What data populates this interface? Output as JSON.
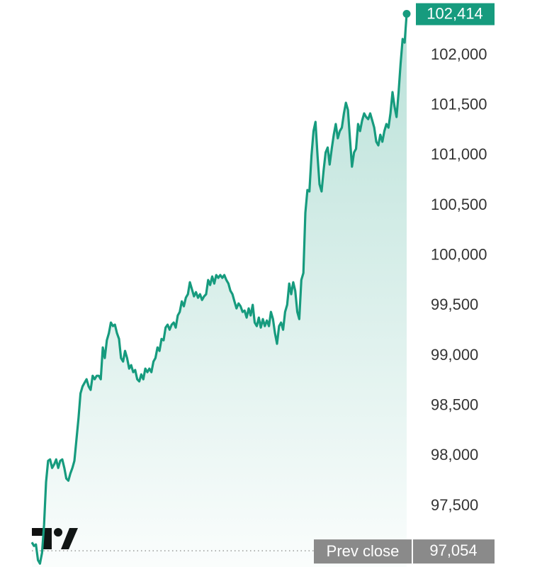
{
  "chart_data": {
    "type": "line",
    "color": "#169b7e",
    "values": [
      97138,
      97103,
      97117,
      96961,
      96926,
      97032,
      97315,
      97740,
      97952,
      97966,
      97881,
      97917,
      97966,
      97881,
      97952,
      97966,
      97881,
      97775,
      97754,
      97825,
      97881,
      97952,
      98164,
      98377,
      98624,
      98695,
      98730,
      98766,
      98695,
      98660,
      98801,
      98766,
      98801,
      98801,
      98766,
      99084,
      98978,
      99155,
      99226,
      99332,
      99297,
      99311,
      99226,
      99169,
      98978,
      98943,
      99049,
      98978,
      98872,
      98907,
      98837,
      98858,
      98766,
      98745,
      98815,
      98766,
      98872,
      98837,
      98872,
      98837,
      98943,
      98978,
      99084,
      99049,
      99169,
      99155,
      99282,
      99311,
      99261,
      99311,
      99332,
      99282,
      99403,
      99438,
      99544,
      99495,
      99580,
      99615,
      99735,
      99665,
      99594,
      99636,
      99580,
      99615,
      99558,
      99594,
      99615,
      99757,
      99707,
      99792,
      99721,
      99806,
      99778,
      99806,
      99778,
      99806,
      99757,
      99721,
      99650,
      99615,
      99544,
      99474,
      99523,
      99495,
      99438,
      99452,
      99382,
      99474,
      99403,
      99509,
      99332,
      99297,
      99382,
      99282,
      99367,
      99297,
      99353,
      99297,
      99438,
      99367,
      99226,
      99120,
      99297,
      99332,
      99261,
      99438,
      99509,
      99721,
      99615,
      99735,
      99650,
      99438,
      99367,
      99757,
      99827,
      100429,
      100655,
      100641,
      100995,
      101243,
      101335,
      100995,
      100712,
      100641,
      100854,
      101030,
      101080,
      100910,
      101066,
      101207,
      101314,
      101172,
      101243,
      101278,
      101420,
      101526,
      101455,
      101172,
      100889,
      101030,
      101066,
      101314,
      101243,
      101349,
      101420,
      101384,
      101363,
      101420,
      101349,
      101278,
      101137,
      101101,
      101207,
      101137,
      101243,
      101314,
      101278,
      101420,
      101632,
      101490,
      101384,
      101632,
      101915,
      102163,
      102127,
      102414
    ],
    "ylim": [
      96892,
      102552
    ],
    "yticks": [
      {
        "value": 97500,
        "label": "97,500"
      },
      {
        "value": 98000,
        "label": "98,000"
      },
      {
        "value": 98500,
        "label": "98,500"
      },
      {
        "value": 99000,
        "label": "99,000"
      },
      {
        "value": 99500,
        "label": "99,500"
      },
      {
        "value": 100000,
        "label": "100,000"
      },
      {
        "value": 100500,
        "label": "100,500"
      },
      {
        "value": 101000,
        "label": "101,000"
      },
      {
        "value": 101500,
        "label": "101,500"
      },
      {
        "value": 102000,
        "label": "102,000"
      }
    ],
    "last_price": {
      "value": 102414,
      "label": "102,414"
    },
    "prev_close": {
      "name": "Prev close",
      "value": 97054,
      "label": "97,054"
    }
  }
}
